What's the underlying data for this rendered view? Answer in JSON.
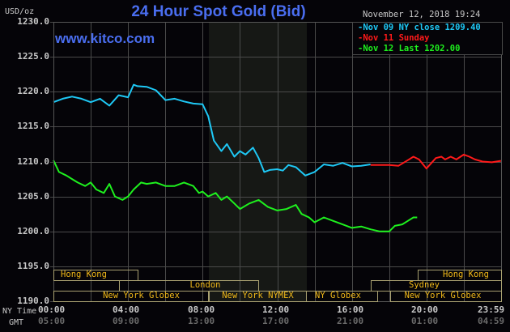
{
  "header": {
    "title": "24 Hour Spot Gold (Bid)",
    "site": "www.kitco.com",
    "unit": "USD/oz",
    "timestamp": "November 12, 2018 19:24"
  },
  "legend": [
    {
      "label": "Nov 09 NY close 1209.40",
      "color": "#1ec8f5"
    },
    {
      "label": "Nov 11 Sunday",
      "color": "#ff1a1a"
    },
    {
      "label": "Nov 12 Last 1202.00",
      "color": "#1ef01e"
    }
  ],
  "axis": {
    "y_ticks": [
      "1230.0",
      "1225.0",
      "1220.0",
      "1215.0",
      "1210.0",
      "1205.0",
      "1200.0",
      "1195.0",
      "1190.0"
    ],
    "x_row_label": "NY Time",
    "gmt_row_label": "GMT",
    "x_ticks": [
      "00:00",
      "04:00",
      "08:00",
      "12:00",
      "16:00",
      "20:00",
      "23:59"
    ],
    "gmt_ticks": [
      "05:00",
      "09:00",
      "13:00",
      "17:00",
      "21:00",
      "01:00",
      "04:59"
    ]
  },
  "sessions": [
    {
      "label": "Hong Kong",
      "row": 1
    },
    {
      "label": "London",
      "row": 2
    },
    {
      "label": "New York Globex",
      "row": 3
    },
    {
      "label": "New York NYMEX",
      "row": 3
    },
    {
      "label": "NY Globex",
      "row": 3
    },
    {
      "label": "New York Globex",
      "row": 3
    },
    {
      "label": "Sydney",
      "row": 2
    },
    {
      "label": "Hong Kong",
      "row": 1
    }
  ],
  "chart_data": {
    "type": "line",
    "title": "24 Hour Spot Gold (Bid)",
    "xlabel": "NY Time",
    "ylabel": "USD/oz",
    "ylim": [
      1190,
      1230
    ],
    "xlim": [
      "00:00",
      "23:59"
    ],
    "grid": true,
    "legend_position": "top-right",
    "shaded_region": {
      "from": "08:00",
      "to": "13:15",
      "label": "New York NYMEX"
    },
    "series": [
      {
        "name": "Nov 09 NY close 1209.40",
        "color": "#1ec8f5",
        "x_hours": [
          0,
          0.5,
          1,
          1.5,
          2,
          2.5,
          3,
          3.5,
          4,
          4.3,
          4.5,
          5,
          5.5,
          6,
          6.5,
          7,
          7.5,
          8,
          8.3,
          8.6,
          9,
          9.3,
          9.7,
          10,
          10.3,
          10.7,
          11,
          11.3,
          11.6,
          12,
          12.3,
          12.6,
          13,
          13.5,
          14,
          14.5,
          15,
          15.5,
          16,
          16.5,
          17
        ],
        "values": [
          1218.5,
          1219.0,
          1219.3,
          1219.0,
          1218.5,
          1219.0,
          1218.0,
          1219.5,
          1219.2,
          1221.0,
          1220.8,
          1220.7,
          1220.2,
          1218.8,
          1219.0,
          1218.6,
          1218.3,
          1218.2,
          1216.5,
          1213.0,
          1211.5,
          1212.5,
          1210.7,
          1211.5,
          1211.0,
          1212.0,
          1210.5,
          1208.5,
          1208.8,
          1208.9,
          1208.7,
          1209.5,
          1209.2,
          1208.0,
          1208.5,
          1209.6,
          1209.4,
          1209.8,
          1209.3,
          1209.4,
          1209.6
        ]
      },
      {
        "name": "Nov 11 Sunday",
        "color": "#ff1a1a",
        "x_hours": [
          17,
          17.5,
          18,
          18.5,
          19,
          19.3,
          19.6,
          20,
          20.5,
          20.8,
          21,
          21.3,
          21.6,
          22,
          22.3,
          22.6,
          23,
          23.5,
          23.99
        ],
        "values": [
          1209.5,
          1209.5,
          1209.5,
          1209.4,
          1210.2,
          1210.7,
          1210.3,
          1209.0,
          1210.5,
          1210.7,
          1210.3,
          1210.7,
          1210.3,
          1211.0,
          1210.7,
          1210.3,
          1210.0,
          1209.9,
          1210.1
        ]
      },
      {
        "name": "Nov 12 Last 1202.00",
        "color": "#1ef01e",
        "x_hours": [
          0,
          0.3,
          0.7,
          1,
          1.3,
          1.7,
          2,
          2.3,
          2.7,
          3,
          3.3,
          3.7,
          4,
          4.3,
          4.7,
          5,
          5.5,
          6,
          6.5,
          7,
          7.5,
          7.8,
          8,
          8.3,
          8.7,
          9,
          9.3,
          9.7,
          10,
          10.5,
          11,
          11.5,
          12,
          12.5,
          13,
          13.3,
          13.7,
          14,
          14.5,
          15,
          15.5,
          16,
          16.5,
          17,
          17.5,
          18,
          18.3,
          18.7,
          19,
          19.3,
          19.5
        ],
        "values": [
          1210.2,
          1208.5,
          1208.0,
          1207.5,
          1207.0,
          1206.5,
          1207.0,
          1206.0,
          1205.5,
          1206.8,
          1205.0,
          1204.5,
          1205.0,
          1206.0,
          1207.0,
          1206.8,
          1207.0,
          1206.5,
          1206.5,
          1207.0,
          1206.5,
          1205.5,
          1205.7,
          1205.0,
          1205.5,
          1204.5,
          1205.0,
          1204.0,
          1203.2,
          1204.0,
          1204.5,
          1203.5,
          1203.0,
          1203.2,
          1203.8,
          1202.5,
          1202.0,
          1201.3,
          1202.0,
          1201.5,
          1201.0,
          1200.5,
          1200.7,
          1200.3,
          1200.0,
          1200.0,
          1200.8,
          1201.0,
          1201.5,
          1202.0,
          1202.0
        ]
      }
    ]
  }
}
